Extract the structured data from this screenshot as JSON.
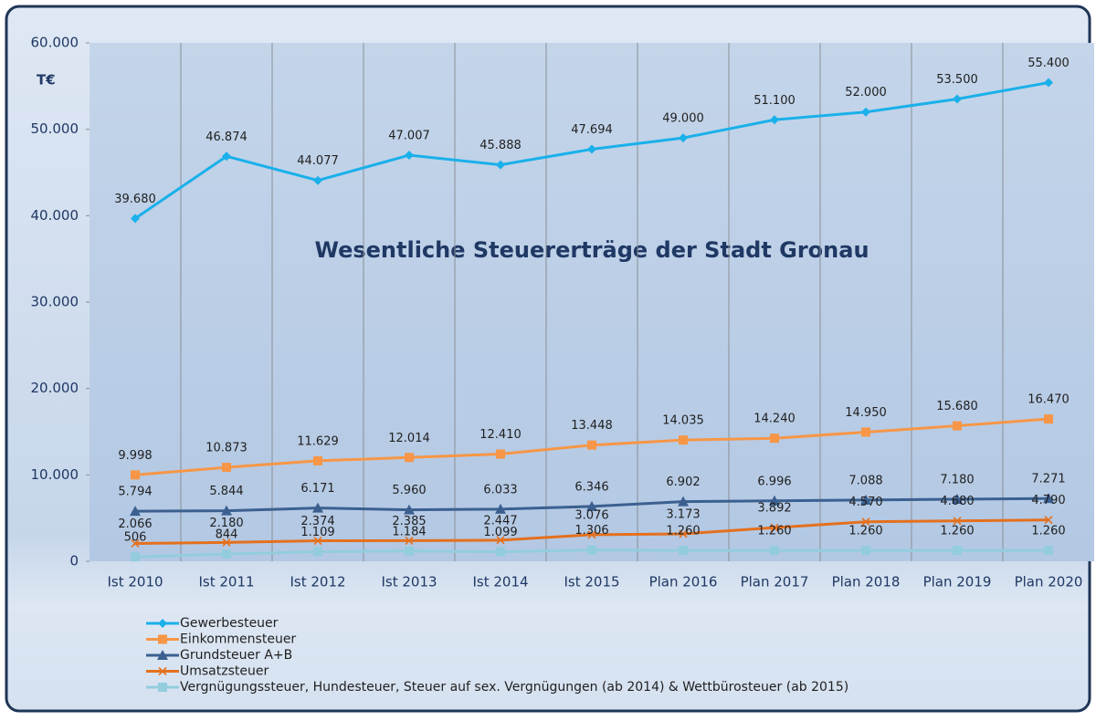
{
  "chart_data": {
    "type": "line",
    "title": "Wesentliche Steuererträge der Stadt Gronau",
    "y_unit": "T€",
    "categories": [
      "Ist 2010",
      "Ist 2011",
      "Ist 2012",
      "Ist 2013",
      "Ist 2014",
      "Ist 2015",
      "Plan 2016",
      "Plan 2017",
      "Plan 2018",
      "Plan 2019",
      "Plan 2020"
    ],
    "series": [
      {
        "name": "Gewerbesteuer",
        "color": "#1ab0ea",
        "marker": "diamond",
        "values": [
          39680,
          46874,
          44077,
          47007,
          45888,
          47694,
          49000,
          51100,
          52000,
          53500,
          55400
        ],
        "value_labels": [
          "39.680",
          "46.874",
          "44.077",
          "47.007",
          "45.888",
          "47.694",
          "49.000",
          "51.100",
          "52.000",
          "53.500",
          "55.400"
        ]
      },
      {
        "name": "Einkommensteuer",
        "color": "#f79646",
        "marker": "square",
        "values": [
          9998,
          10873,
          11629,
          12014,
          12410,
          13448,
          14035,
          14240,
          14950,
          15680,
          16470
        ],
        "value_labels": [
          "9.998",
          "10.873",
          "11.629",
          "12.014",
          "12.410",
          "13.448",
          "14.035",
          "14.240",
          "14.950",
          "15.680",
          "16.470"
        ]
      },
      {
        "name": "Grundsteuer A+B",
        "color": "#3b6090",
        "marker": "triangle",
        "values": [
          5794,
          5844,
          6171,
          5960,
          6033,
          6346,
          6902,
          6996,
          7088,
          7180,
          7271
        ],
        "value_labels": [
          "5.794",
          "5.844",
          "6.171",
          "5.960",
          "6.033",
          "6.346",
          "6.902",
          "6.996",
          "7.088",
          "7.180",
          "7.271"
        ]
      },
      {
        "name": "Umsatzsteuer",
        "color": "#e4701e",
        "marker": "x",
        "values": [
          2066,
          2180,
          2374,
          2385,
          2447,
          3076,
          3173,
          3892,
          4570,
          4680,
          4790
        ],
        "value_labels": [
          "2.066",
          "2.180",
          "2.374",
          "2.385",
          "2.447",
          "3.076",
          "3.173",
          "3.892",
          "4.570",
          "4.680",
          "4.790"
        ]
      },
      {
        "name": "Vergnügungssteuer, Hundesteuer, Steuer auf sex. Vergnügungen (ab 2014) & Wettbürosteuer (ab 2015)",
        "color": "#93cddd",
        "marker": "square",
        "values": [
          506,
          844,
          1109,
          1184,
          1099,
          1306,
          1260,
          1260,
          1260,
          1260,
          1260
        ],
        "value_labels": [
          "506",
          "844",
          "1.109",
          "1.184",
          "1.099",
          "1.306",
          "1.260",
          "1.260",
          "1.260",
          "1.260",
          "1.260"
        ]
      }
    ],
    "ylim": [
      0,
      60000
    ],
    "yticks": [
      0,
      {
        "value": 10000,
        "label": "10.000"
      },
      {
        "value": 20000,
        "label": "20.000"
      },
      {
        "value": 30000,
        "label": "30.000"
      },
      {
        "value": 40000,
        "label": "40.000"
      },
      {
        "value": 50000,
        "label": "50.000"
      },
      {
        "value": 60000,
        "label": "60.000"
      }
    ],
    "grid": true
  }
}
